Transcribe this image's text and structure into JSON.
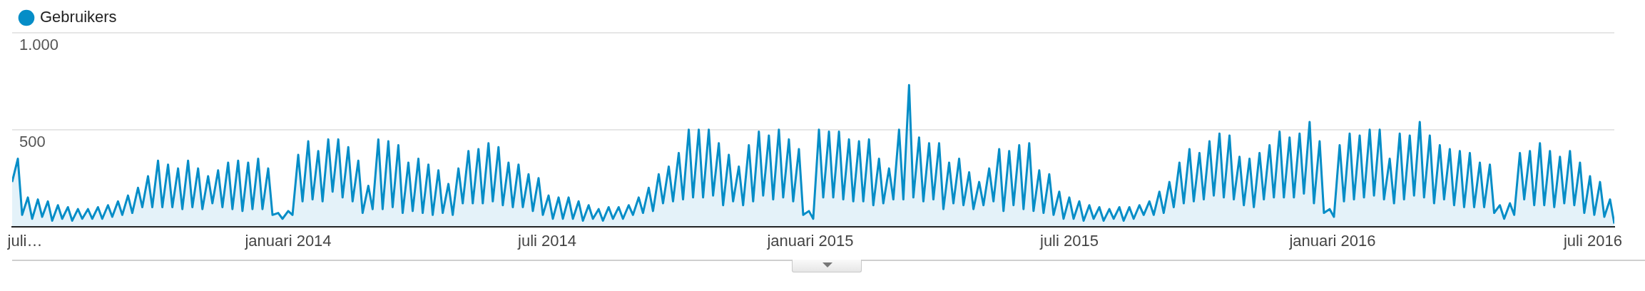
{
  "chart_data": {
    "type": "area",
    "legend": "top left",
    "grid": "y",
    "marker": "none",
    "line_style": "solid",
    "xlim": [
      "2013-06-22",
      "2016-07-16"
    ],
    "xticks": [
      {
        "value": "2013-07-01",
        "label": "juli…"
      },
      {
        "value": "2014-01-01",
        "label": "januari 2014"
      },
      {
        "value": "2014-07-01",
        "label": "juli 2014"
      },
      {
        "value": "2015-01-01",
        "label": "januari 2015"
      },
      {
        "value": "2015-07-01",
        "label": "juli 2015"
      },
      {
        "value": "2016-01-01",
        "label": "januari 2016"
      },
      {
        "value": "2016-07-01",
        "label": "juli 2016"
      }
    ],
    "ylim": [
      0,
      1000
    ],
    "yticks": [
      500,
      {
        "value": 1000,
        "label": "1.000"
      }
    ],
    "series": [
      {
        "name": "Gebruikers",
        "color": "#058dc7",
        "x": [
          "2013-06-22",
          "2013-06-26",
          "2013-06-29",
          "2013-07-03",
          "2013-07-06",
          "2013-07-10",
          "2013-07-13",
          "2013-07-17",
          "2013-07-20",
          "2013-07-24",
          "2013-07-27",
          "2013-07-31",
          "2013-08-03",
          "2013-08-07",
          "2013-08-10",
          "2013-08-14",
          "2013-08-17",
          "2013-08-21",
          "2013-08-24",
          "2013-08-28",
          "2013-08-31",
          "2013-09-04",
          "2013-09-07",
          "2013-09-11",
          "2013-09-14",
          "2013-09-18",
          "2013-09-21",
          "2013-09-25",
          "2013-09-28",
          "2013-10-02",
          "2013-10-05",
          "2013-10-09",
          "2013-10-12",
          "2013-10-16",
          "2013-10-19",
          "2013-10-23",
          "2013-10-26",
          "2013-10-30",
          "2013-11-02",
          "2013-11-06",
          "2013-11-09",
          "2013-11-13",
          "2013-11-16",
          "2013-11-20",
          "2013-11-23",
          "2013-11-27",
          "2013-11-30",
          "2013-12-04",
          "2013-12-07",
          "2013-12-11",
          "2013-12-14",
          "2013-12-18",
          "2013-12-21",
          "2013-12-25",
          "2013-12-28",
          "2014-01-01",
          "2014-01-04",
          "2014-01-08",
          "2014-01-11",
          "2014-01-15",
          "2014-01-18",
          "2014-01-22",
          "2014-01-25",
          "2014-01-29",
          "2014-02-01",
          "2014-02-05",
          "2014-02-08",
          "2014-02-12",
          "2014-02-15",
          "2014-02-19",
          "2014-02-22",
          "2014-02-26",
          "2014-03-01",
          "2014-03-05",
          "2014-03-08",
          "2014-03-12",
          "2014-03-15",
          "2014-03-19",
          "2014-03-22",
          "2014-03-26",
          "2014-03-29",
          "2014-04-02",
          "2014-04-05",
          "2014-04-09",
          "2014-04-12",
          "2014-04-16",
          "2014-04-19",
          "2014-04-23",
          "2014-04-26",
          "2014-04-30",
          "2014-05-03",
          "2014-05-07",
          "2014-05-10",
          "2014-05-14",
          "2014-05-17",
          "2014-05-21",
          "2014-05-24",
          "2014-05-28",
          "2014-05-31",
          "2014-06-04",
          "2014-06-07",
          "2014-06-11",
          "2014-06-14",
          "2014-06-18",
          "2014-06-21",
          "2014-06-25",
          "2014-06-28",
          "2014-07-02",
          "2014-07-05",
          "2014-07-09",
          "2014-07-12",
          "2014-07-16",
          "2014-07-19",
          "2014-07-23",
          "2014-07-26",
          "2014-07-30",
          "2014-08-02",
          "2014-08-06",
          "2014-08-09",
          "2014-08-13",
          "2014-08-16",
          "2014-08-20",
          "2014-08-23",
          "2014-08-27",
          "2014-08-30",
          "2014-09-03",
          "2014-09-06",
          "2014-09-10",
          "2014-09-13",
          "2014-09-17",
          "2014-09-20",
          "2014-09-24",
          "2014-09-27",
          "2014-10-01",
          "2014-10-04",
          "2014-10-08",
          "2014-10-11",
          "2014-10-15",
          "2014-10-18",
          "2014-10-22",
          "2014-10-25",
          "2014-10-29",
          "2014-11-01",
          "2014-11-05",
          "2014-11-08",
          "2014-11-12",
          "2014-11-15",
          "2014-11-19",
          "2014-11-22",
          "2014-11-26",
          "2014-11-29",
          "2014-12-03",
          "2014-12-06",
          "2014-12-10",
          "2014-12-13",
          "2014-12-17",
          "2014-12-20",
          "2014-12-24",
          "2014-12-27",
          "2014-12-31",
          "2015-01-03",
          "2015-01-07",
          "2015-01-10",
          "2015-01-14",
          "2015-01-17",
          "2015-01-21",
          "2015-01-24",
          "2015-01-28",
          "2015-01-31",
          "2015-02-04",
          "2015-02-07",
          "2015-02-11",
          "2015-02-14",
          "2015-02-18",
          "2015-02-21",
          "2015-02-25",
          "2015-02-28",
          "2015-03-04",
          "2015-03-07",
          "2015-03-11",
          "2015-03-14",
          "2015-03-18",
          "2015-03-21",
          "2015-03-25",
          "2015-03-28",
          "2015-04-01",
          "2015-04-04",
          "2015-04-08",
          "2015-04-11",
          "2015-04-15",
          "2015-04-18",
          "2015-04-22",
          "2015-04-25",
          "2015-04-29",
          "2015-05-02",
          "2015-05-06",
          "2015-05-09",
          "2015-05-13",
          "2015-05-16",
          "2015-05-20",
          "2015-05-23",
          "2015-05-27",
          "2015-05-30",
          "2015-06-03",
          "2015-06-06",
          "2015-06-10",
          "2015-06-13",
          "2015-06-17",
          "2015-06-20",
          "2015-06-24",
          "2015-06-27",
          "2015-07-01",
          "2015-07-04",
          "2015-07-08",
          "2015-07-11",
          "2015-07-15",
          "2015-07-18",
          "2015-07-22",
          "2015-07-25",
          "2015-07-29",
          "2015-08-01",
          "2015-08-05",
          "2015-08-08",
          "2015-08-12",
          "2015-08-15",
          "2015-08-19",
          "2015-08-22",
          "2015-08-26",
          "2015-08-29",
          "2015-09-02",
          "2015-09-05",
          "2015-09-09",
          "2015-09-12",
          "2015-09-16",
          "2015-09-19",
          "2015-09-23",
          "2015-09-26",
          "2015-09-30",
          "2015-10-03",
          "2015-10-07",
          "2015-10-10",
          "2015-10-14",
          "2015-10-17",
          "2015-10-21",
          "2015-10-24",
          "2015-10-28",
          "2015-10-31",
          "2015-11-04",
          "2015-11-07",
          "2015-11-11",
          "2015-11-14",
          "2015-11-18",
          "2015-11-21",
          "2015-11-25",
          "2015-11-28",
          "2015-12-02",
          "2015-12-05",
          "2015-12-09",
          "2015-12-12",
          "2015-12-16",
          "2015-12-19",
          "2015-12-23",
          "2015-12-26",
          "2015-12-30",
          "2016-01-02",
          "2016-01-06",
          "2016-01-09",
          "2016-01-13",
          "2016-01-16",
          "2016-01-20",
          "2016-01-23",
          "2016-01-27",
          "2016-01-30",
          "2016-02-03",
          "2016-02-06",
          "2016-02-10",
          "2016-02-13",
          "2016-02-17",
          "2016-02-20",
          "2016-02-24",
          "2016-02-27",
          "2016-03-02",
          "2016-03-05",
          "2016-03-09",
          "2016-03-12",
          "2016-03-16",
          "2016-03-19",
          "2016-03-23",
          "2016-03-26",
          "2016-03-30",
          "2016-04-02",
          "2016-04-06",
          "2016-04-09",
          "2016-04-13",
          "2016-04-16",
          "2016-04-20",
          "2016-04-23",
          "2016-04-27",
          "2016-04-30",
          "2016-05-04",
          "2016-05-07",
          "2016-05-11",
          "2016-05-14",
          "2016-05-18",
          "2016-05-21",
          "2016-05-25",
          "2016-05-28",
          "2016-06-01",
          "2016-06-04",
          "2016-06-08",
          "2016-06-11",
          "2016-06-15",
          "2016-06-18",
          "2016-06-22",
          "2016-06-25",
          "2016-06-29",
          "2016-07-02",
          "2016-07-06",
          "2016-07-09",
          "2016-07-13",
          "2016-07-16"
        ],
        "values": [
          230,
          350,
          60,
          150,
          40,
          140,
          50,
          130,
          30,
          110,
          40,
          100,
          30,
          90,
          40,
          90,
          40,
          100,
          40,
          110,
          50,
          130,
          60,
          160,
          70,
          200,
          100,
          260,
          100,
          340,
          100,
          320,
          100,
          300,
          90,
          340,
          100,
          300,
          90,
          260,
          120,
          290,
          100,
          330,
          90,
          340,
          80,
          330,
          90,
          350,
          90,
          300,
          60,
          70,
          40,
          80,
          60,
          370,
          130,
          440,
          140,
          390,
          130,
          450,
          180,
          450,
          150,
          410,
          130,
          340,
          70,
          210,
          90,
          450,
          90,
          440,
          100,
          420,
          70,
          330,
          80,
          350,
          70,
          320,
          60,
          290,
          70,
          220,
          60,
          300,
          120,
          390,
          120,
          400,
          120,
          430,
          130,
          410,
          110,
          330,
          100,
          320,
          100,
          270,
          80,
          250,
          60,
          160,
          40,
          150,
          40,
          150,
          40,
          130,
          30,
          110,
          40,
          90,
          30,
          100,
          40,
          100,
          40,
          110,
          60,
          150,
          70,
          200,
          80,
          270,
          120,
          310,
          130,
          380,
          140,
          500,
          150,
          500,
          150,
          500,
          160,
          430,
          110,
          370,
          130,
          310,
          110,
          420,
          130,
          490,
          160,
          470,
          140,
          500,
          150,
          450,
          130,
          400,
          60,
          80,
          40,
          500,
          150,
          490,
          150,
          490,
          140,
          450,
          130,
          440,
          130,
          450,
          110,
          350,
          120,
          300,
          140,
          500,
          140,
          730,
          150,
          460,
          130,
          430,
          140,
          430,
          90,
          330,
          120,
          350,
          110,
          280,
          90,
          230,
          110,
          300,
          130,
          400,
          80,
          390,
          110,
          420,
          90,
          430,
          80,
          290,
          70,
          270,
          60,
          180,
          40,
          150,
          40,
          130,
          30,
          110,
          40,
          100,
          30,
          90,
          40,
          100,
          30,
          100,
          40,
          110,
          60,
          130,
          60,
          180,
          70,
          230,
          100,
          330,
          120,
          400,
          130,
          380,
          140,
          440,
          160,
          480,
          150,
          470,
          140,
          360,
          110,
          350,
          100,
          380,
          140,
          420,
          150,
          490,
          150,
          460,
          150,
          480,
          170,
          540,
          120,
          440,
          70,
          90,
          50,
          420,
          130,
          480,
          140,
          470,
          150,
          500,
          160,
          500,
          140,
          350,
          120,
          480,
          140,
          470,
          160,
          540,
          150,
          470,
          120,
          420,
          140,
          400,
          110,
          390,
          100,
          380,
          100,
          330,
          100,
          320,
          70,
          110,
          40,
          120,
          60,
          380,
          140,
          390,
          110,
          430,
          110,
          390,
          100,
          360,
          120,
          390,
          110,
          330,
          70,
          260,
          60,
          230,
          50,
          140,
          15
        ]
      }
    ]
  }
}
